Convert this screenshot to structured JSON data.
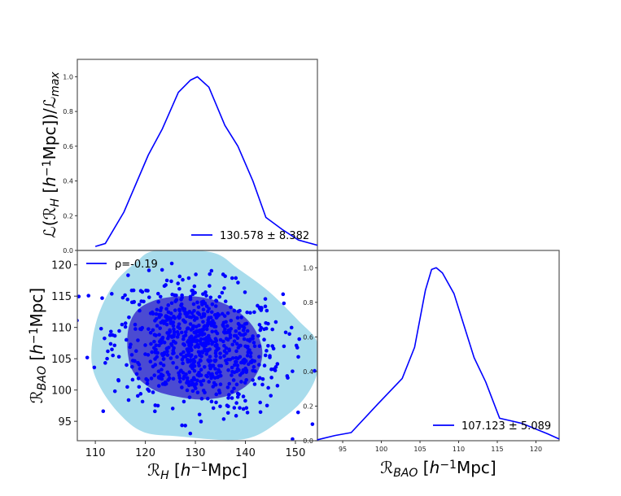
{
  "chart_data": [
    {
      "type": "line",
      "panel": "top-marginal",
      "ylabel": "ℒ(ℛ_{H} [h^{−1}Mpc])/ℒ_{max}",
      "xlim": [
        106.4,
        154.4
      ],
      "ylim": [
        0,
        1.1
      ],
      "yticks": [
        0.0,
        0.2,
        0.4,
        0.6,
        0.8,
        1.0
      ],
      "legend": {
        "label": "130.578 ± 8.382",
        "placement": "lower-right"
      },
      "color": "#0000ff",
      "x": [
        110.0,
        112.0,
        115.7,
        120.6,
        123.4,
        126.6,
        129.0,
        130.4,
        132.7,
        135.9,
        138.5,
        141.5,
        144.1,
        147.4,
        150.6,
        154.4
      ],
      "y": [
        0.023,
        0.04,
        0.22,
        0.55,
        0.7,
        0.91,
        0.98,
        1.0,
        0.94,
        0.72,
        0.6,
        0.4,
        0.19,
        0.12,
        0.06,
        0.03
      ]
    },
    {
      "type": "scatter",
      "panel": "joint",
      "xlabel": "ℛ_{H} [h^{−1}Mpc]",
      "ylabel": "ℛ_{BAO} [h^{−1}Mpc]",
      "xlim": [
        106.4,
        154.4
      ],
      "ylim": [
        91.9,
        122.3
      ],
      "xticks": [
        110,
        120,
        130,
        140,
        150
      ],
      "yticks": [
        95,
        100,
        105,
        110,
        115,
        120
      ],
      "legend": {
        "label": "ρ=-0.19",
        "placement": "upper-left"
      },
      "points": {
        "mean": [
          130.578,
          107.123
        ],
        "std": [
          8.382,
          5.089
        ],
        "rho": -0.19,
        "count": 800,
        "color": "#0000ff"
      },
      "contours": [
        {
          "level": "outer",
          "color": "#a8dcec",
          "x": [
            109.2,
            110.3,
            113.6,
            118.0,
            122.2,
            133.2,
            138.5,
            144.6,
            150.6,
            154.4,
            154.4,
            151.6,
            146.7,
            141.8,
            136.4,
            126.6,
            119.6,
            114.7,
            110.8
          ],
          "y": [
            105.1,
            111.2,
            116.8,
            120.3,
            122.3,
            122.0,
            119.4,
            115.8,
            111.1,
            107.6,
            102.8,
            98.5,
            95.0,
            92.6,
            92.0,
            92.6,
            93.3,
            96.3,
            100.7
          ]
        },
        {
          "level": "inner",
          "color": "#4b4bd2",
          "x": [
            116.4,
            118.0,
            122.2,
            127.8,
            133.2,
            138.1,
            141.8,
            143.4,
            141.8,
            137.6,
            132.0,
            126.6,
            121.3,
            117.3
          ],
          "y": [
            108.5,
            112.4,
            114.4,
            115.0,
            114.5,
            112.8,
            109.8,
            105.9,
            102.0,
            99.4,
            98.5,
            98.9,
            100.2,
            103.3
          ]
        }
      ]
    },
    {
      "type": "line",
      "panel": "right-marginal",
      "xlabel": "ℛ_{BAO} [h^{−1}Mpc]",
      "xlim": [
        91.73,
        123.0
      ],
      "ylim": [
        0,
        1.1
      ],
      "xticks": [
        95,
        100,
        105,
        110,
        115,
        120
      ],
      "yticks": [
        0.0,
        0.2,
        0.4,
        0.6,
        0.8,
        1.0
      ],
      "legend": {
        "label": "107.123 ± 5.089",
        "placement": "lower-right"
      },
      "color": "#0000ff",
      "x": [
        91.7,
        94.0,
        96.1,
        99.5,
        102.7,
        104.3,
        105.7,
        106.5,
        107.1,
        107.9,
        109.4,
        112.0,
        113.5,
        115.3,
        118.2,
        121.5,
        123.0
      ],
      "y": [
        0.005,
        0.03,
        0.047,
        0.21,
        0.36,
        0.54,
        0.87,
        0.99,
        1.0,
        0.97,
        0.85,
        0.48,
        0.34,
        0.13,
        0.1,
        0.04,
        0.01
      ]
    }
  ]
}
